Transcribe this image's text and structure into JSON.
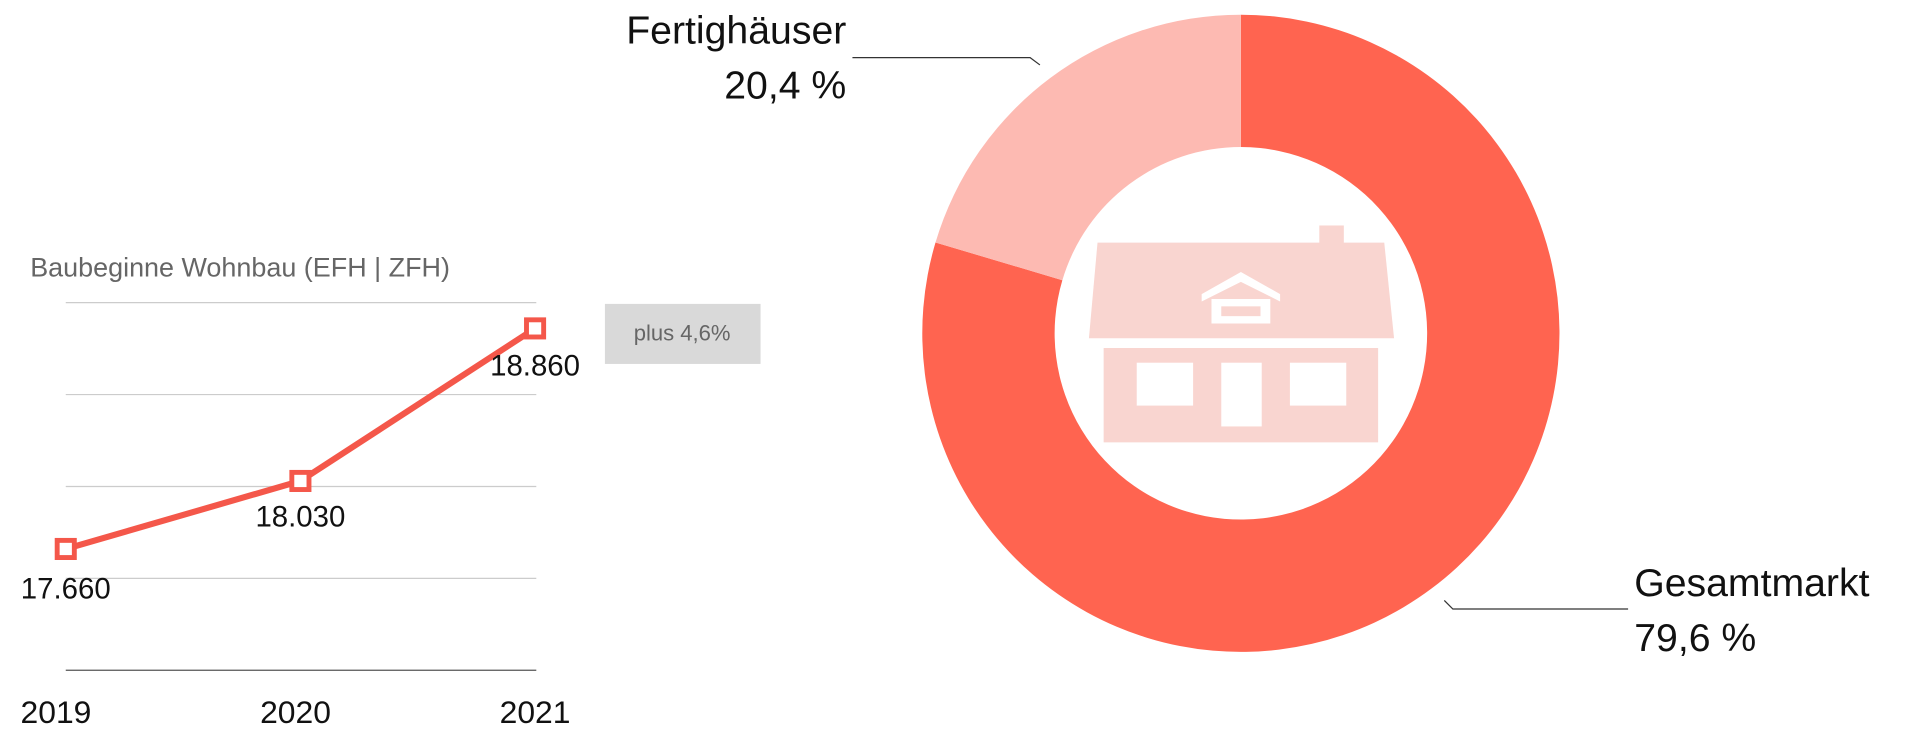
{
  "chart_data": [
    {
      "type": "line",
      "title": "Baubeginne Wohnbau (EFH | ZFH)",
      "categories": [
        "2019",
        "2020",
        "2021"
      ],
      "values": [
        17660,
        18030,
        18860
      ],
      "value_labels": [
        "17.660",
        "18.030",
        "18.860"
      ],
      "color": "#f4574a",
      "ylim": [
        17000,
        19000
      ],
      "yticks": [
        17000,
        17500,
        18000,
        18500,
        19000
      ],
      "grid": true,
      "annotation": "plus 4,6%"
    },
    {
      "type": "pie",
      "donut": true,
      "categories": [
        "Gesamtmarkt",
        "Fertighäuser"
      ],
      "values": [
        79.6,
        20.4
      ],
      "value_labels": [
        "79,6 %",
        "20,4 %"
      ],
      "colors": [
        "#ff6450",
        "#fdbab2"
      ]
    }
  ]
}
